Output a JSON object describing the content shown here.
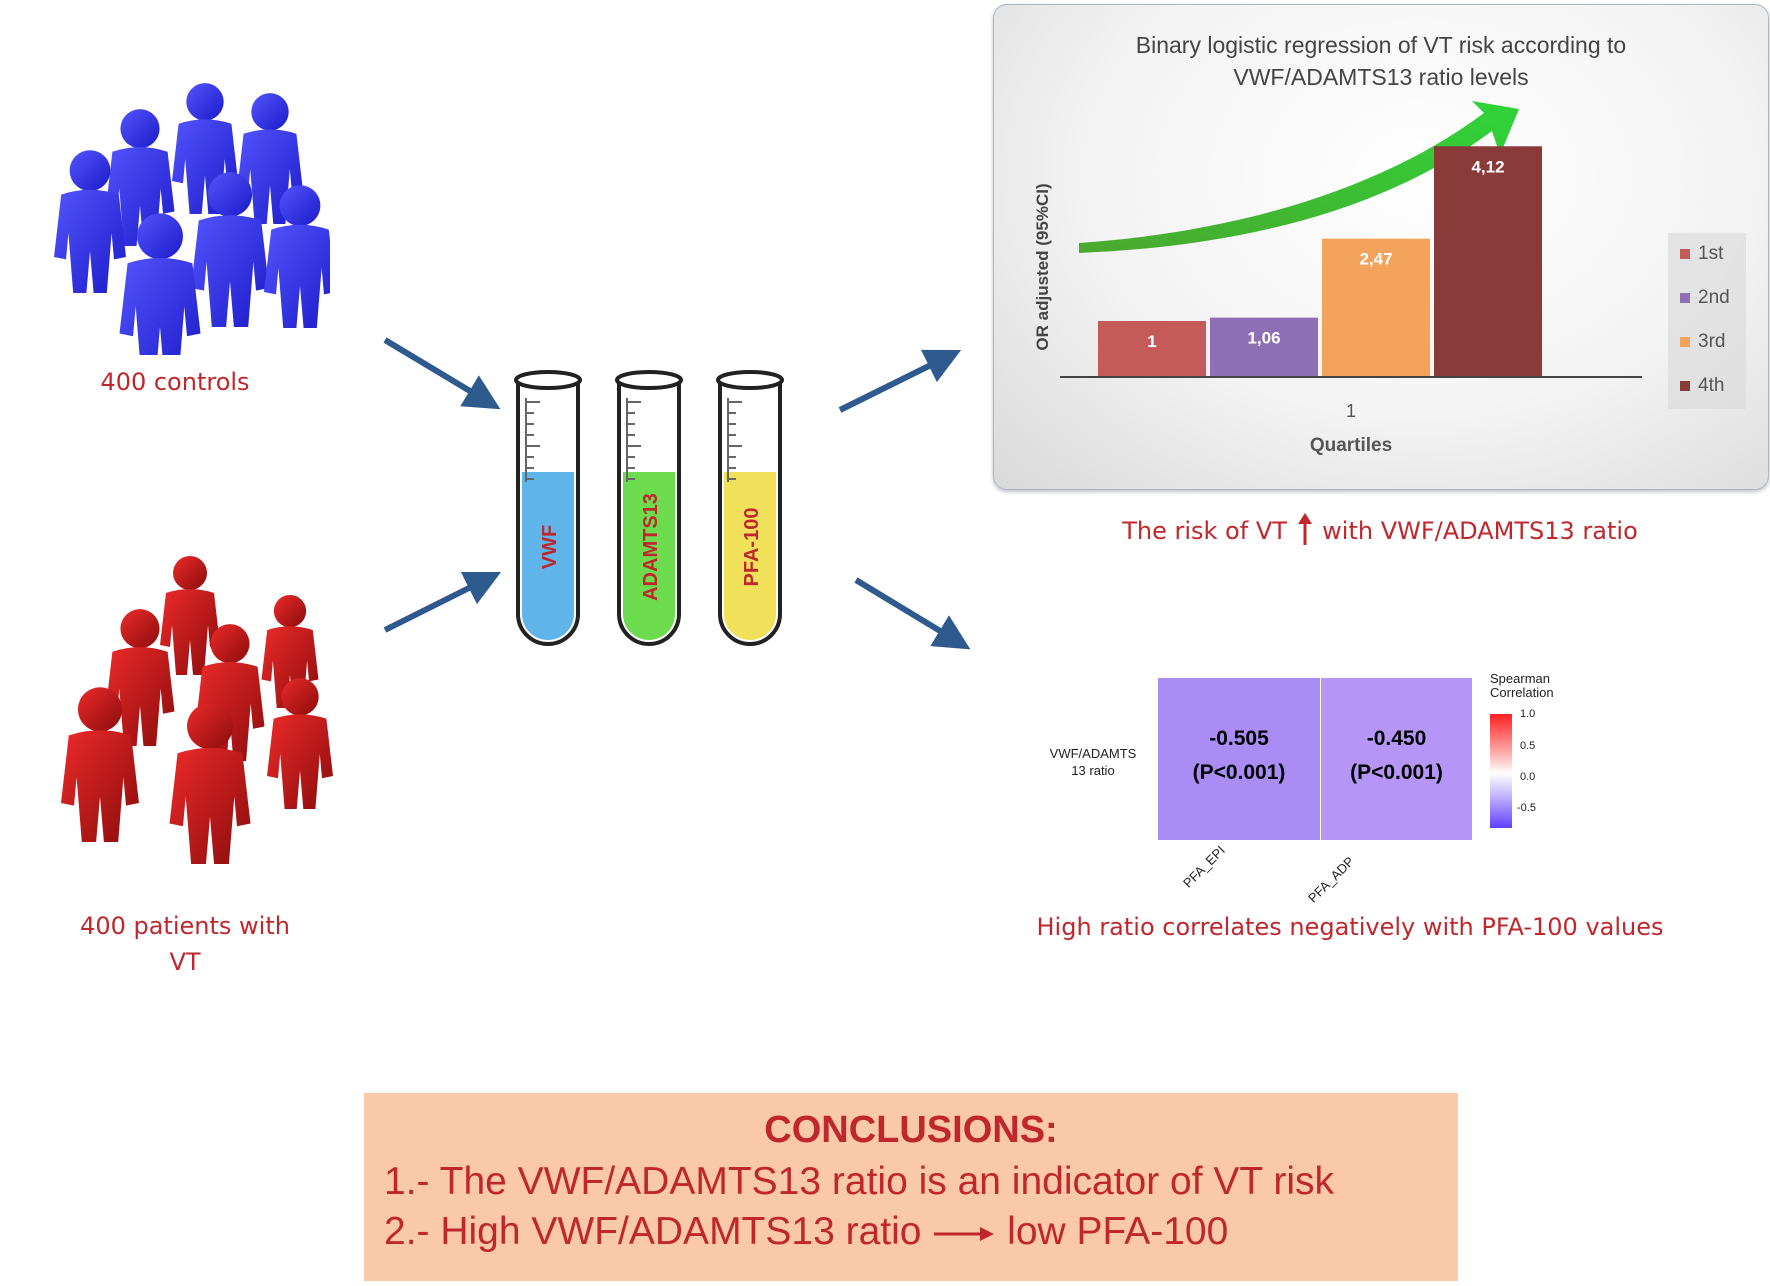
{
  "groups": {
    "controls_caption": "400 controls",
    "patients_caption_line1": "400 patients with",
    "patients_caption_line2": "VT"
  },
  "tubes": [
    {
      "label": "VWF",
      "liquid_color": "#5fb4ea"
    },
    {
      "label": "ADAMTS13",
      "liquid_color": "#6cdc4e"
    },
    {
      "label": "PFA-100",
      "liquid_color": "#f0e05a"
    }
  ],
  "chart_data": [
    {
      "type": "bar",
      "title": "Binary logistic regression of VT risk according to VWF/ADAMTS13 ratio levels",
      "title_line1": "Binary logistic regression of VT risk according to",
      "title_line2": "VWF/ADAMTS13 ratio levels",
      "xlabel": "Quartiles",
      "ylabel": "OR adjusted (95%CI)",
      "categories": [
        "1"
      ],
      "series": [
        {
          "name": "1st",
          "values": [
            1
          ],
          "label": "1",
          "color": "#c55a5a"
        },
        {
          "name": "2nd",
          "values": [
            1.06
          ],
          "label": "1,06",
          "color": "#8e6fb5"
        },
        {
          "name": "3rd",
          "values": [
            2.47
          ],
          "label": "2,47",
          "color": "#f4a35c"
        },
        {
          "name": "4th",
          "values": [
            4.12
          ],
          "label": "4,12",
          "color": "#8b3a3a"
        }
      ],
      "ylim": [
        0,
        4.5
      ],
      "legend": "right",
      "grid": false
    },
    {
      "type": "heatmap",
      "row_labels": [
        "VWF/ADAMTS 13 ratio"
      ],
      "row_label_line1": "VWF/ADAMTS",
      "row_label_line2": "13 ratio",
      "column_labels": [
        "PFA_EPI",
        "PFA_ADP"
      ],
      "cells": [
        {
          "value": "-0.505",
          "pvalue": "(P<0.001)",
          "r": -0.505,
          "color": "#a98cf4"
        },
        {
          "value": "-0.450",
          "pvalue": "(P<0.001)",
          "r": -0.45,
          "color": "#b596f6"
        }
      ],
      "colorbar": {
        "title_line1": "Spearman",
        "title_line2": "Correlation",
        "ticks": [
          "1.0",
          "0.5",
          "0.0",
          "-0.5"
        ]
      }
    }
  ],
  "captions": {
    "risk_before": "The risk of VT",
    "risk_after": "with VWF/ADAMTS13 ratio",
    "correlation": "High ratio correlates negatively with PFA-100 values"
  },
  "conclusions": {
    "title": "CONCLUSIONS:",
    "line1": "1.- The VWF/ADAMTS13 ratio is an indicator of VT risk",
    "line2_start": "2.-  High VWF/ADAMTS13 ratio",
    "line2_end": "low PFA-100"
  },
  "colors": {
    "accent_red": "#c0272d",
    "arrow_blue": "#2e5a8e",
    "controls_blue": "#3a3ae0",
    "patients_red": "#d11414",
    "conclusion_bg": "#f9c9a9"
  }
}
